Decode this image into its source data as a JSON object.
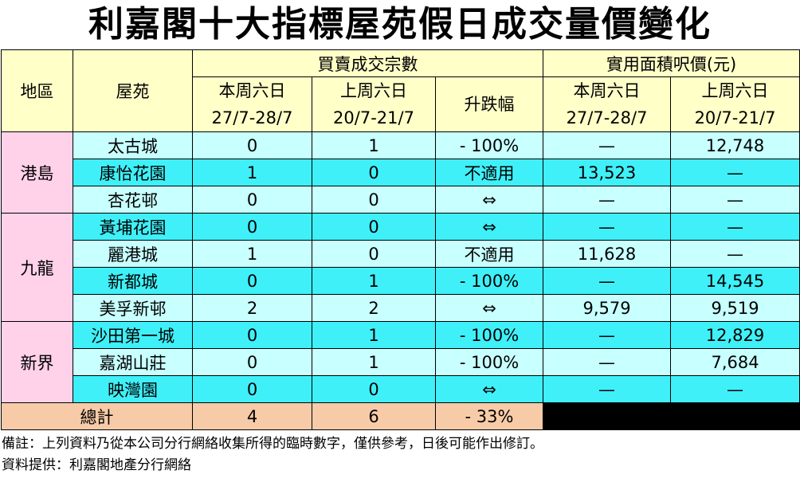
{
  "title": "利嘉閣十大指標屋苑假日成交量價變化",
  "table": {
    "header": {
      "region": "地區",
      "estate": "屋苑",
      "volume_group": "買賣成交宗數",
      "price_group": "實用面積呎價(元)",
      "volume_cols": [
        {
          "label": "本周六日",
          "dates": "27/7-28/7"
        },
        {
          "label": "上周六日",
          "dates": "20/7-21/7"
        },
        {
          "label": "升跌幅"
        }
      ],
      "price_cols": [
        {
          "label": "本周六日",
          "dates": "27/7-28/7"
        },
        {
          "label": "上周六日",
          "dates": "20/7-21/7"
        }
      ]
    },
    "regions": [
      {
        "name": "港島",
        "rows": [
          [
            "太古城",
            "0",
            "1",
            "- 100%",
            "—",
            "12,748"
          ],
          [
            "康怡花園",
            "1",
            "0",
            "不適用",
            "13,523",
            "—"
          ],
          [
            "杏花邨",
            "0",
            "0",
            "⇔",
            "—",
            "—"
          ]
        ]
      },
      {
        "name": "九龍",
        "rows": [
          [
            "黃埔花園",
            "0",
            "0",
            "⇔",
            "—",
            "—"
          ],
          [
            "麗港城",
            "1",
            "0",
            "不適用",
            "11,628",
            "—"
          ],
          [
            "新都城",
            "0",
            "1",
            "- 100%",
            "—",
            "14,545"
          ],
          [
            "美孚新邨",
            "2",
            "2",
            "⇔",
            "9,579",
            "9,519"
          ]
        ]
      },
      {
        "name": "新界",
        "rows": [
          [
            "沙田第一城",
            "0",
            "1",
            "- 100%",
            "—",
            "12,829"
          ],
          [
            "嘉湖山莊",
            "0",
            "1",
            "- 100%",
            "—",
            "7,684"
          ],
          [
            "映灣園",
            "0",
            "0",
            "⇔",
            "—",
            "—"
          ]
        ]
      }
    ],
    "total": {
      "label": "總計",
      "values": [
        "4",
        "6",
        "- 33%"
      ]
    }
  },
  "notes": [
    "備註：上列資料乃從本公司分行網絡收集所得的臨時數字，僅供參考，日後可能作出修訂。",
    "資料提供：利嘉閣地產分行網絡"
  ]
}
